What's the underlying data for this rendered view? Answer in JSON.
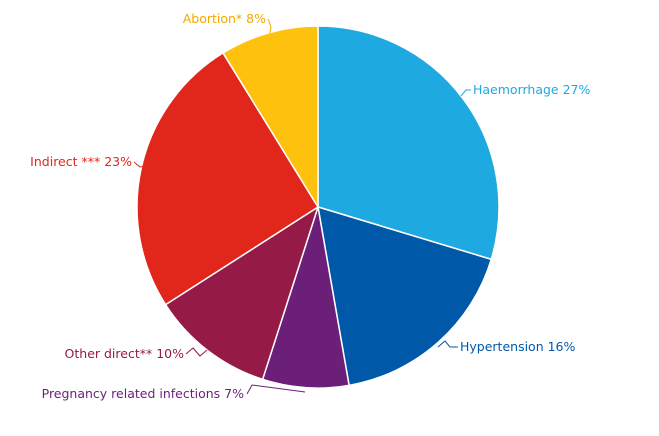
{
  "chart_data": {
    "type": "pie",
    "title": "",
    "start_angle_deg": 0,
    "direction": "clockwise",
    "slices": [
      {
        "label": "Haemorrhage 27%",
        "name": "Haemorrhage",
        "value": 27,
        "color": "#1fa9e1",
        "text_color": "#1fa9e1"
      },
      {
        "label": "Hypertension 16%",
        "name": "Hypertension",
        "value": 16,
        "color": "#0059a8",
        "text_color": "#0059a8"
      },
      {
        "label": "Pregnancy related infections 7%",
        "name": "Pregnancy related infections",
        "value": 7,
        "color": "#6b1f78",
        "text_color": "#6b1f78"
      },
      {
        "label": "Other direct** 10%",
        "name": "Other direct**",
        "value": 10,
        "color": "#951a48",
        "text_color": "#951a48"
      },
      {
        "label": "Indirect *** 23%",
        "name": "Indirect ***",
        "value": 23,
        "color": "#e1261c",
        "text_color": "#e1261c"
      },
      {
        "label": "Abortion* 8%",
        "name": "Abortion*",
        "value": 8,
        "color": "#fec10d",
        "text_color": "#f2a900"
      }
    ]
  }
}
